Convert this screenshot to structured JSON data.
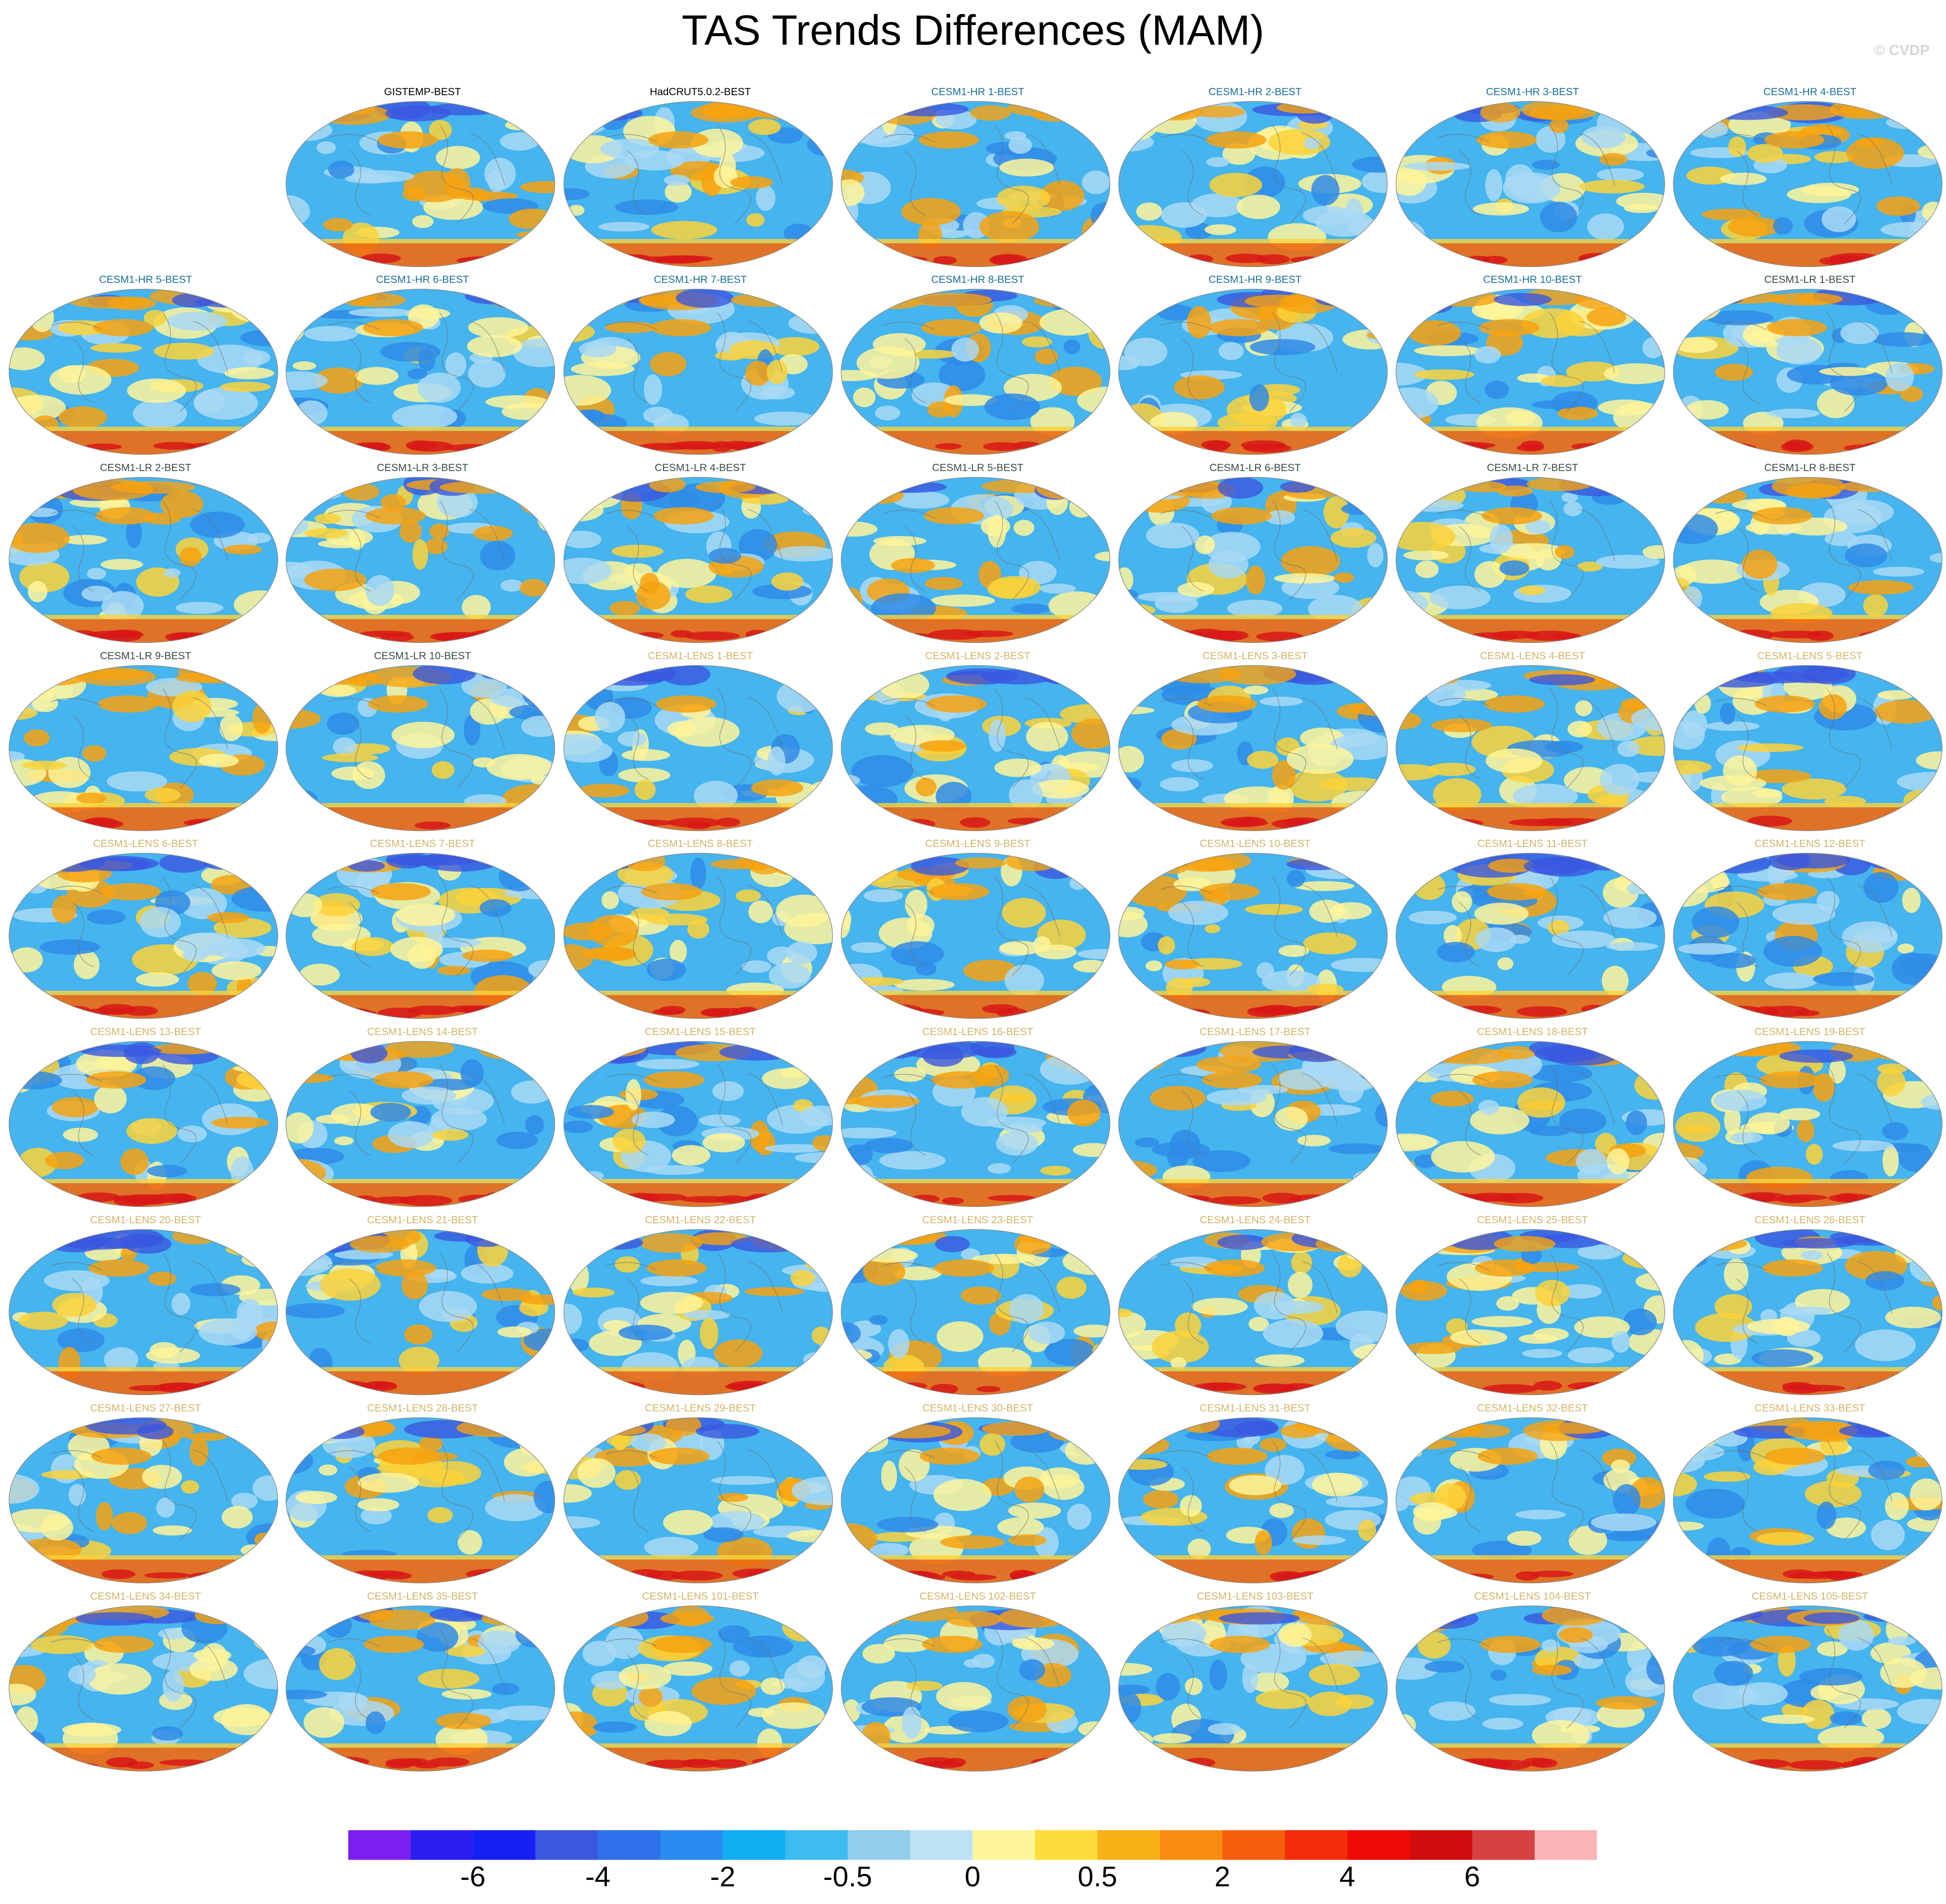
{
  "title": "TAS Trends Differences (MAM)",
  "copyright": "© CVDP",
  "label_colors": {
    "observations": "#000000",
    "CESM1-HR": "#1a6f99",
    "CESM1-LR": "#3a4a4a",
    "CESM1-LENS": "#d4b46a"
  },
  "panels": [
    {
      "label": "GISTEMP-BEST",
      "group": "observations",
      "row": 0,
      "col": 1
    },
    {
      "label": "HadCRUT5.0.2-BEST",
      "group": "observations",
      "row": 0,
      "col": 2
    },
    {
      "label": "CESM1-HR 1-BEST",
      "group": "CESM1-HR",
      "row": 0,
      "col": 3
    },
    {
      "label": "CESM1-HR 2-BEST",
      "group": "CESM1-HR",
      "row": 0,
      "col": 4
    },
    {
      "label": "CESM1-HR 3-BEST",
      "group": "CESM1-HR",
      "row": 0,
      "col": 5
    },
    {
      "label": "CESM1-HR 4-BEST",
      "group": "CESM1-HR",
      "row": 0,
      "col": 6
    },
    {
      "label": "CESM1-HR 5-BEST",
      "group": "CESM1-HR",
      "row": 1,
      "col": 0
    },
    {
      "label": "CESM1-HR 6-BEST",
      "group": "CESM1-HR",
      "row": 1,
      "col": 1
    },
    {
      "label": "CESM1-HR 7-BEST",
      "group": "CESM1-HR",
      "row": 1,
      "col": 2
    },
    {
      "label": "CESM1-HR 8-BEST",
      "group": "CESM1-HR",
      "row": 1,
      "col": 3
    },
    {
      "label": "CESM1-HR 9-BEST",
      "group": "CESM1-HR",
      "row": 1,
      "col": 4
    },
    {
      "label": "CESM1-HR 10-BEST",
      "group": "CESM1-HR",
      "row": 1,
      "col": 5
    },
    {
      "label": "CESM1-LR 1-BEST",
      "group": "CESM1-LR",
      "row": 1,
      "col": 6
    },
    {
      "label": "CESM1-LR 2-BEST",
      "group": "CESM1-LR",
      "row": 2,
      "col": 0
    },
    {
      "label": "CESM1-LR 3-BEST",
      "group": "CESM1-LR",
      "row": 2,
      "col": 1
    },
    {
      "label": "CESM1-LR 4-BEST",
      "group": "CESM1-LR",
      "row": 2,
      "col": 2
    },
    {
      "label": "CESM1-LR 5-BEST",
      "group": "CESM1-LR",
      "row": 2,
      "col": 3
    },
    {
      "label": "CESM1-LR 6-BEST",
      "group": "CESM1-LR",
      "row": 2,
      "col": 4
    },
    {
      "label": "CESM1-LR 7-BEST",
      "group": "CESM1-LR",
      "row": 2,
      "col": 5
    },
    {
      "label": "CESM1-LR 8-BEST",
      "group": "CESM1-LR",
      "row": 2,
      "col": 6
    },
    {
      "label": "CESM1-LR 9-BEST",
      "group": "CESM1-LR",
      "row": 3,
      "col": 0
    },
    {
      "label": "CESM1-LR 10-BEST",
      "group": "CESM1-LR",
      "row": 3,
      "col": 1
    },
    {
      "label": "CESM1-LENS 1-BEST",
      "group": "CESM1-LENS",
      "row": 3,
      "col": 2
    },
    {
      "label": "CESM1-LENS 2-BEST",
      "group": "CESM1-LENS",
      "row": 3,
      "col": 3
    },
    {
      "label": "CESM1-LENS 3-BEST",
      "group": "CESM1-LENS",
      "row": 3,
      "col": 4
    },
    {
      "label": "CESM1-LENS 4-BEST",
      "group": "CESM1-LENS",
      "row": 3,
      "col": 5
    },
    {
      "label": "CESM1-LENS 5-BEST",
      "group": "CESM1-LENS",
      "row": 3,
      "col": 6
    },
    {
      "label": "CESM1-LENS 6-BEST",
      "group": "CESM1-LENS",
      "row": 4,
      "col": 0
    },
    {
      "label": "CESM1-LENS 7-BEST",
      "group": "CESM1-LENS",
      "row": 4,
      "col": 1
    },
    {
      "label": "CESM1-LENS 8-BEST",
      "group": "CESM1-LENS",
      "row": 4,
      "col": 2
    },
    {
      "label": "CESM1-LENS 9-BEST",
      "group": "CESM1-LENS",
      "row": 4,
      "col": 3
    },
    {
      "label": "CESM1-LENS 10-BEST",
      "group": "CESM1-LENS",
      "row": 4,
      "col": 4
    },
    {
      "label": "CESM1-LENS 11-BEST",
      "group": "CESM1-LENS",
      "row": 4,
      "col": 5
    },
    {
      "label": "CESM1-LENS 12-BEST",
      "group": "CESM1-LENS",
      "row": 4,
      "col": 6
    },
    {
      "label": "CESM1-LENS 13-BEST",
      "group": "CESM1-LENS",
      "row": 5,
      "col": 0
    },
    {
      "label": "CESM1-LENS 14-BEST",
      "group": "CESM1-LENS",
      "row": 5,
      "col": 1
    },
    {
      "label": "CESM1-LENS 15-BEST",
      "group": "CESM1-LENS",
      "row": 5,
      "col": 2
    },
    {
      "label": "CESM1-LENS 16-BEST",
      "group": "CESM1-LENS",
      "row": 5,
      "col": 3
    },
    {
      "label": "CESM1-LENS 17-BEST",
      "group": "CESM1-LENS",
      "row": 5,
      "col": 4
    },
    {
      "label": "CESM1-LENS 18-BEST",
      "group": "CESM1-LENS",
      "row": 5,
      "col": 5
    },
    {
      "label": "CESM1-LENS 19-BEST",
      "group": "CESM1-LENS",
      "row": 5,
      "col": 6
    },
    {
      "label": "CESM1-LENS 20-BEST",
      "group": "CESM1-LENS",
      "row": 6,
      "col": 0
    },
    {
      "label": "CESM1-LENS 21-BEST",
      "group": "CESM1-LENS",
      "row": 6,
      "col": 1
    },
    {
      "label": "CESM1-LENS 22-BEST",
      "group": "CESM1-LENS",
      "row": 6,
      "col": 2
    },
    {
      "label": "CESM1-LENS 23-BEST",
      "group": "CESM1-LENS",
      "row": 6,
      "col": 3
    },
    {
      "label": "CESM1-LENS 24-BEST",
      "group": "CESM1-LENS",
      "row": 6,
      "col": 4
    },
    {
      "label": "CESM1-LENS 25-BEST",
      "group": "CESM1-LENS",
      "row": 6,
      "col": 5
    },
    {
      "label": "CESM1-LENS 26-BEST",
      "group": "CESM1-LENS",
      "row": 6,
      "col": 6
    },
    {
      "label": "CESM1-LENS 27-BEST",
      "group": "CESM1-LENS",
      "row": 7,
      "col": 0
    },
    {
      "label": "CESM1-LENS 28-BEST",
      "group": "CESM1-LENS",
      "row": 7,
      "col": 1
    },
    {
      "label": "CESM1-LENS 29-BEST",
      "group": "CESM1-LENS",
      "row": 7,
      "col": 2
    },
    {
      "label": "CESM1-LENS 30-BEST",
      "group": "CESM1-LENS",
      "row": 7,
      "col": 3
    },
    {
      "label": "CESM1-LENS 31-BEST",
      "group": "CESM1-LENS",
      "row": 7,
      "col": 4
    },
    {
      "label": "CESM1-LENS 32-BEST",
      "group": "CESM1-LENS",
      "row": 7,
      "col": 5
    },
    {
      "label": "CESM1-LENS 33-BEST",
      "group": "CESM1-LENS",
      "row": 7,
      "col": 6
    },
    {
      "label": "CESM1-LENS 34-BEST",
      "group": "CESM1-LENS",
      "row": 8,
      "col": 0
    },
    {
      "label": "CESM1-LENS 35-BEST",
      "group": "CESM1-LENS",
      "row": 8,
      "col": 1
    },
    {
      "label": "CESM1-LENS 101-BEST",
      "group": "CESM1-LENS",
      "row": 8,
      "col": 2
    },
    {
      "label": "CESM1-LENS 102-BEST",
      "group": "CESM1-LENS",
      "row": 8,
      "col": 3
    },
    {
      "label": "CESM1-LENS 103-BEST",
      "group": "CESM1-LENS",
      "row": 8,
      "col": 4
    },
    {
      "label": "CESM1-LENS 104-BEST",
      "group": "CESM1-LENS",
      "row": 8,
      "col": 5
    },
    {
      "label": "CESM1-LENS 105-BEST",
      "group": "CESM1-LENS",
      "row": 8,
      "col": 6
    }
  ],
  "map_colors": {
    "ocean_base": "#45b4ef",
    "cool_light": "#a9d9f4",
    "cool_dark": "#2f8be6",
    "cold": "#3a57e0",
    "neutral_warm": "#fff59a",
    "warm": "#fbd23a",
    "warmer": "#f7a20f",
    "hot": "#ef6a10",
    "very_hot": "#d81818",
    "coast": "#6e6e6e"
  },
  "colorbar": {
    "colors": [
      "#7b1ff0",
      "#2a1ff0",
      "#1520f5",
      "#3c57de",
      "#2f71ea",
      "#2a8bf0",
      "#11aef2",
      "#3dbcf1",
      "#93cdec",
      "#bde2f5",
      "#fff69b",
      "#fddd3c",
      "#f8b116",
      "#f88c10",
      "#f6600d",
      "#f32b0a",
      "#f10a05",
      "#d10c0c",
      "#d84143",
      "#fbb3b6"
    ],
    "labels": [
      {
        "text": "-6",
        "after_box": 2
      },
      {
        "text": "-4",
        "after_box": 4
      },
      {
        "text": "-2",
        "after_box": 6
      },
      {
        "text": "-0.5",
        "after_box": 8
      },
      {
        "text": "0",
        "after_box": 10
      },
      {
        "text": "0.5",
        "after_box": 12
      },
      {
        "text": "2",
        "after_box": 14
      },
      {
        "text": "4",
        "after_box": 16
      },
      {
        "text": "6",
        "after_box": 18
      }
    ]
  }
}
